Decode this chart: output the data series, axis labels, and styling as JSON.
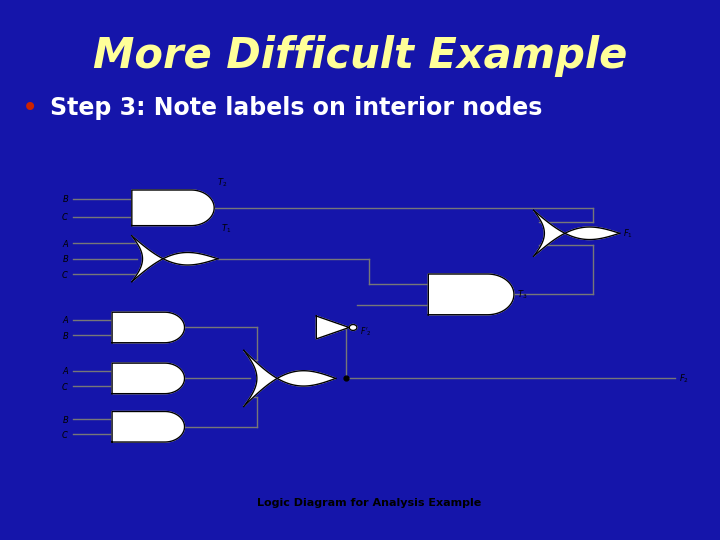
{
  "title": "More Difficult Example",
  "bullet": "Step 3: Note labels on interior nodes",
  "caption": "Logic Diagram for Analysis Example",
  "bg_color": "#1515AA",
  "title_color": "#FFFF99",
  "bullet_color": "#FFFFFF",
  "bullet_dot_color": "#CC2200",
  "diagram_bg": "#FFFFFF",
  "gate_color": "#000000",
  "wire_color": "#777777",
  "label_color": "#000000",
  "fig_width": 7.2,
  "fig_height": 5.4,
  "dpi": 100
}
